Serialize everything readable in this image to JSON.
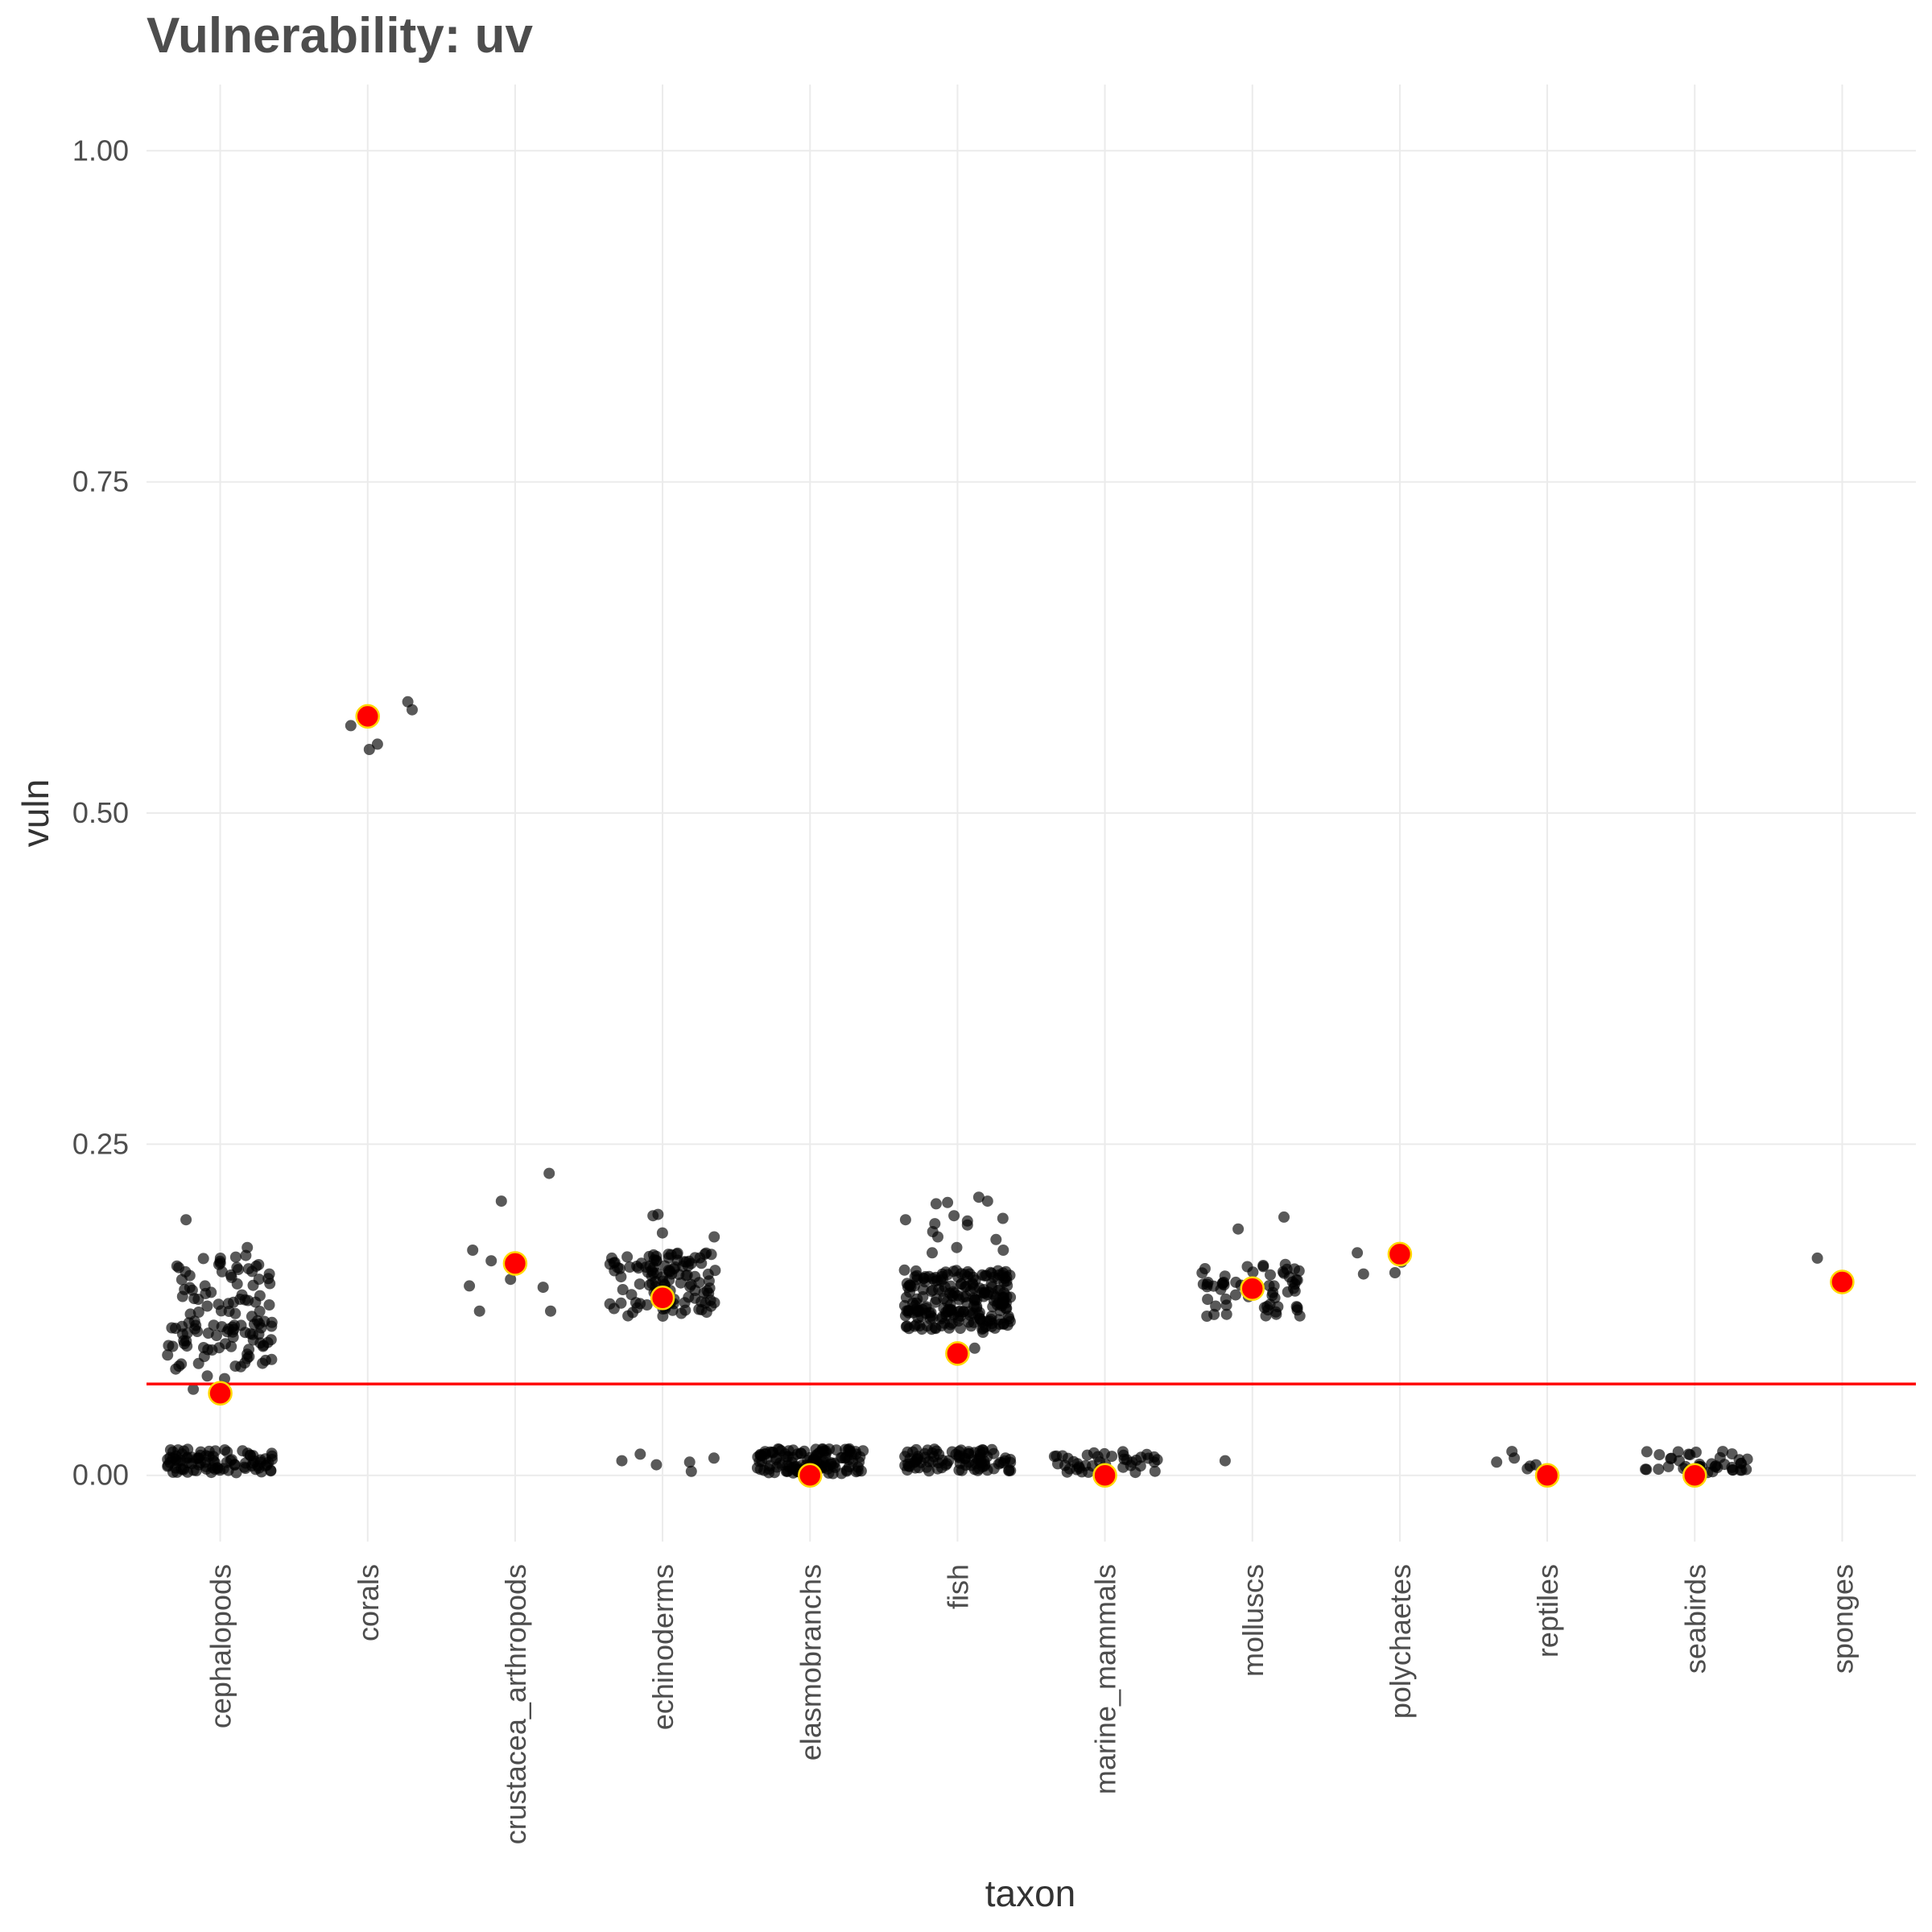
{
  "chart_data": {
    "type": "scatter",
    "title": "Vulnerability: uv",
    "xlabel": "taxon",
    "ylabel": "vuln",
    "categories": [
      "cephalopods",
      "corals",
      "crustacea_arthropods",
      "echinoderms",
      "elasmobranchs",
      "fish",
      "marine_mammals",
      "molluscs",
      "polychaetes",
      "reptiles",
      "seabirds",
      "sponges"
    ],
    "ylim": [
      -0.05,
      1.05
    ],
    "yticks": [
      0.0,
      0.25,
      0.5,
      0.75,
      1.0
    ],
    "ytick_labels": [
      "0.00",
      "0.25",
      "0.50",
      "0.75",
      "1.00"
    ],
    "grid": true,
    "reference_line": {
      "y": 0.069,
      "color": "#ff0000"
    },
    "summary_points": {
      "color": "#ff0000",
      "outline": "#ffd700",
      "values": [
        0.062,
        0.573,
        0.16,
        0.134,
        0.0,
        0.092,
        0.0,
        0.141,
        0.167,
        0.0,
        0.0,
        0.146
      ]
    },
    "jitter_clusters": [
      {
        "category": "cephalopods",
        "groups": [
          {
            "n": 120,
            "lo": 0.08,
            "hi": 0.165
          },
          {
            "n": 90,
            "lo": 0.002,
            "hi": 0.02
          }
        ],
        "extra": [
          0.193,
          0.172,
          0.166,
          0.075,
          0.073,
          0.065
        ]
      },
      {
        "category": "corals",
        "groups": [],
        "extra": [
          0.584,
          0.578,
          0.566,
          0.552,
          0.548
        ]
      },
      {
        "category": "crustacea_arthropods",
        "groups": [],
        "extra": [
          0.228,
          0.207,
          0.17,
          0.162,
          0.148,
          0.143,
          0.142,
          0.124,
          0.124
        ]
      },
      {
        "category": "echinoderms",
        "groups": [
          {
            "n": 120,
            "lo": 0.12,
            "hi": 0.168
          }
        ],
        "extra": [
          0.197,
          0.196,
          0.183,
          0.18,
          0.016,
          0.013,
          0.011,
          0.01,
          0.008,
          0.003
        ]
      },
      {
        "category": "elasmobranchs",
        "groups": [
          {
            "n": 120,
            "lo": 0.001,
            "hi": 0.02
          }
        ],
        "extra": []
      },
      {
        "category": "fish",
        "groups": [
          {
            "n": 220,
            "lo": 0.11,
            "hi": 0.155
          },
          {
            "n": 90,
            "lo": 0.003,
            "hi": 0.02
          }
        ],
        "extra": [
          0.21,
          0.207,
          0.206,
          0.205,
          0.196,
          0.194,
          0.193,
          0.192,
          0.19,
          0.189,
          0.184,
          0.18,
          0.178,
          0.172,
          0.17,
          0.168,
          0.108,
          0.096
        ]
      },
      {
        "category": "marine_mammals",
        "groups": [
          {
            "n": 45,
            "lo": 0.002,
            "hi": 0.018
          }
        ],
        "extra": []
      },
      {
        "category": "molluscs",
        "groups": [
          {
            "n": 60,
            "lo": 0.12,
            "hi": 0.16
          }
        ],
        "extra": [
          0.195,
          0.186,
          0.011
        ]
      },
      {
        "category": "polychaetes",
        "groups": [],
        "extra": [
          0.168,
          0.161,
          0.153,
          0.152
        ]
      },
      {
        "category": "reptiles",
        "groups": [],
        "extra": [
          0.018,
          0.013,
          0.01,
          0.008,
          0.007,
          0.005
        ]
      },
      {
        "category": "seabirds",
        "groups": [
          {
            "n": 40,
            "lo": 0.002,
            "hi": 0.018
          }
        ],
        "extra": []
      },
      {
        "category": "sponges",
        "groups": [],
        "extra": [
          0.164,
          0.148
        ]
      }
    ]
  }
}
